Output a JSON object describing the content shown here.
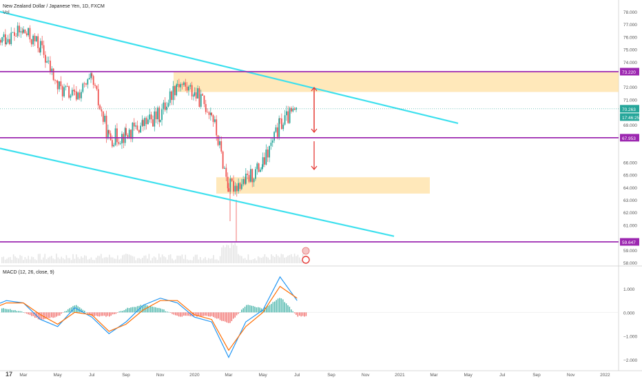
{
  "header": {
    "symbol_title": "New Zealand Dollar / Japanese Yen, 1D, FXCM",
    "volume_label": "Vol"
  },
  "macd": {
    "label": "MACD (12, 26, close, 9)",
    "ticks": [
      "1.000",
      "0.000",
      "−1.000",
      "−2.000"
    ],
    "tick_values": [
      1,
      0,
      -1,
      -2
    ]
  },
  "logo_text": "17",
  "colors": {
    "up": "#26a69a",
    "down": "#ef5350",
    "channel": "#3de0ee",
    "level": "#9c27b0",
    "zone": "#ffe0a3",
    "arrow": "#e53935",
    "macd_line": "#2196f3",
    "signal_line": "#ff6d00",
    "price_badge": "#26a69a"
  },
  "chart_data": {
    "type": "candlestick",
    "symbol": "NZDJPY",
    "timeframe": "1D",
    "x_ticks": [
      "Mar",
      "May",
      "Jul",
      "Sep",
      "Nov",
      "2020",
      "Mar",
      "May",
      "Jul",
      "Sep",
      "Nov",
      "2021",
      "Mar",
      "May",
      "Jul",
      "Sep",
      "Nov",
      "2022"
    ],
    "y_ticks": [
      "78.000",
      "77.000",
      "76.000",
      "75.000",
      "74.000",
      "72.000",
      "71.000",
      "69.000",
      "66.000",
      "65.000",
      "64.000",
      "63.000",
      "62.000",
      "61.000",
      "59.000",
      "58.000"
    ],
    "y_tick_values": [
      78,
      77,
      76,
      75,
      74,
      72,
      71,
      69,
      66,
      65,
      64,
      63,
      62,
      61,
      59,
      58
    ],
    "ylim": [
      57.8,
      78.3
    ],
    "price_labels": [
      {
        "text": "73.220",
        "value": 73.22,
        "kind": "level"
      },
      {
        "text": "70.263",
        "value": 70.263,
        "kind": "last"
      },
      {
        "text": "17:46:25",
        "value": 69.6,
        "kind": "timer"
      },
      {
        "text": "67.953",
        "value": 67.953,
        "kind": "level"
      },
      {
        "text": "59.647",
        "value": 59.647,
        "kind": "level"
      }
    ],
    "horizontal_levels": [
      73.22,
      67.953,
      59.647
    ],
    "last_price": 70.263,
    "zones": [
      {
        "from_date": "2019-11",
        "to_date": "2022-01",
        "low": 71.6,
        "high": 73.2
      },
      {
        "from_date": "2020-03",
        "to_date": "2021-02",
        "low": 63.5,
        "high": 64.8
      }
    ],
    "channel_lines": [
      {
        "from": [
          "2019-01",
          78.0
        ],
        "to": [
          "2020-12",
          69.1
        ]
      },
      {
        "from": [
          "2019-01",
          67.1
        ],
        "to": [
          "2020-12",
          60.1
        ]
      }
    ],
    "ohlc_monthly_approx": [
      {
        "date": "2019-01",
        "close": 74.9
      },
      {
        "date": "2019-02",
        "close": 76.0
      },
      {
        "date": "2019-03",
        "close": 76.4
      },
      {
        "date": "2019-04",
        "close": 75.2
      },
      {
        "date": "2019-05",
        "close": 72.0
      },
      {
        "date": "2019-06",
        "close": 71.2
      },
      {
        "date": "2019-07",
        "close": 72.5
      },
      {
        "date": "2019-08",
        "close": 67.9
      },
      {
        "date": "2019-09",
        "close": 68.2
      },
      {
        "date": "2019-10",
        "close": 69.0
      },
      {
        "date": "2019-11",
        "close": 69.8
      },
      {
        "date": "2019-12",
        "close": 72.4
      },
      {
        "date": "2020-01",
        "close": 71.5
      },
      {
        "date": "2020-02",
        "close": 70.0
      },
      {
        "date": "2020-03",
        "close": 64.0
      },
      {
        "date": "2020-04",
        "close": 64.5
      },
      {
        "date": "2020-05",
        "close": 65.8
      },
      {
        "date": "2020-06",
        "close": 69.0
      },
      {
        "date": "2020-07",
        "close": 70.263
      }
    ],
    "macd_series": [
      {
        "name": "MACD",
        "values": [
          0.2,
          0.5,
          0.4,
          -0.3,
          -0.6,
          0.2,
          -0.2,
          -0.9,
          -0.4,
          0.3,
          0.6,
          0.4,
          -0.2,
          -0.4,
          -1.9,
          -0.4,
          0.1,
          1.5,
          0.5
        ]
      },
      {
        "name": "Signal",
        "values": [
          0.1,
          0.4,
          0.4,
          -0.1,
          -0.5,
          0.0,
          -0.1,
          -0.8,
          -0.5,
          0.1,
          0.5,
          0.5,
          -0.1,
          -0.3,
          -1.6,
          -0.6,
          0.0,
          1.1,
          0.6
        ]
      }
    ]
  }
}
